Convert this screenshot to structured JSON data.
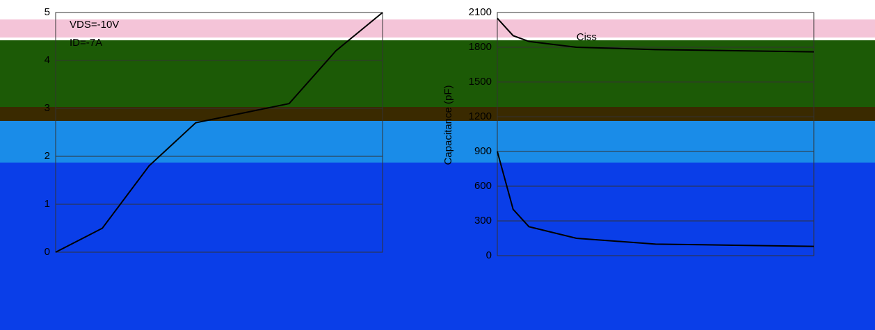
{
  "chart_data": [
    {
      "type": "line",
      "annotations": [
        "VDS=-10V",
        "ID=-7A"
      ],
      "x": [
        0,
        2,
        4,
        6,
        8,
        10,
        12,
        14
      ],
      "xlim": [
        0,
        14
      ],
      "series": [
        {
          "color": "#000000",
          "values": [
            0,
            0.5,
            1.8,
            2.7,
            2.9,
            3.1,
            4.2,
            5
          ]
        }
      ],
      "ylim": [
        0,
        5
      ],
      "yticks": [
        0,
        1,
        2,
        3,
        4,
        5
      ],
      "grid": true
    },
    {
      "type": "line",
      "y_label": "Capacitance (pF)",
      "x": [
        0,
        1,
        2,
        5,
        10,
        15,
        20
      ],
      "xlim": [
        0,
        20
      ],
      "series": [
        {
          "name": "Ciss",
          "color": "#000000",
          "values": [
            2050,
            1900,
            1850,
            1800,
            1780,
            1770,
            1760
          ]
        },
        {
          "color": "#000000",
          "values": [
            900,
            400,
            250,
            150,
            100,
            90,
            80
          ]
        }
      ],
      "ylim": [
        0,
        2100
      ],
      "yticks": [
        0,
        300,
        600,
        900,
        1200,
        1500,
        1800,
        2100
      ],
      "grid": true
    }
  ]
}
